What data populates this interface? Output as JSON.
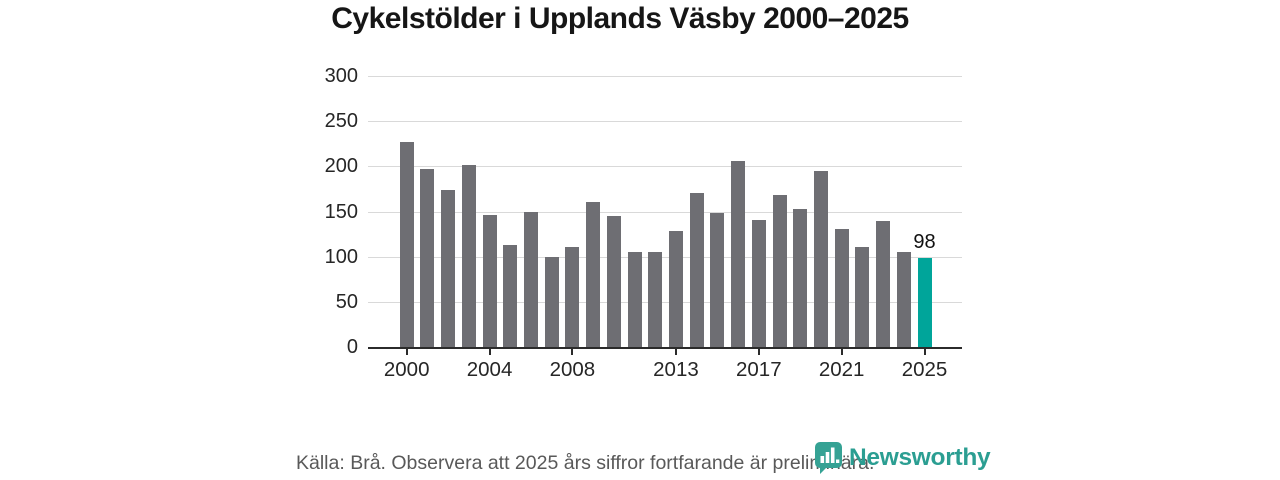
{
  "title": "Cykelstölder i Upplands Väsby 2000–2025",
  "footer": {
    "source_note": "Källa: Brå. Observera att 2025 års siffror fortfarande är preliminära."
  },
  "branding": {
    "name": "Newsworthy",
    "logo_icon": "bar-chart-pin-badge-icon",
    "badge_color": "#35a294",
    "wordmark_color": "#2b9e92"
  },
  "chart_data": {
    "type": "bar",
    "title": "Cykelstölder i Upplands Väsby 2000–2025",
    "categories": [
      2000,
      2001,
      2002,
      2003,
      2004,
      2005,
      2006,
      2007,
      2008,
      2009,
      2010,
      2011,
      2012,
      2013,
      2014,
      2015,
      2016,
      2017,
      2018,
      2019,
      2020,
      2021,
      2022,
      2023,
      2024,
      2025
    ],
    "values": [
      227,
      197,
      174,
      202,
      146,
      113,
      149,
      100,
      111,
      160,
      145,
      105,
      105,
      128,
      170,
      148,
      206,
      141,
      168,
      153,
      195,
      131,
      111,
      140,
      105,
      98
    ],
    "highlight_index": 25,
    "highlight_label": "98",
    "x_tick_years": [
      2000,
      2004,
      2008,
      2013,
      2017,
      2021,
      2025
    ],
    "y_ticks": [
      0,
      50,
      100,
      150,
      200,
      250,
      300
    ],
    "ylim": [
      0,
      300
    ],
    "grid": true,
    "legend": "none",
    "bar_color": "#6e6e73",
    "highlight_color": "#00a59a",
    "gridline_color": "#d9d9d9",
    "axis_color": "#2b2b2b"
  }
}
